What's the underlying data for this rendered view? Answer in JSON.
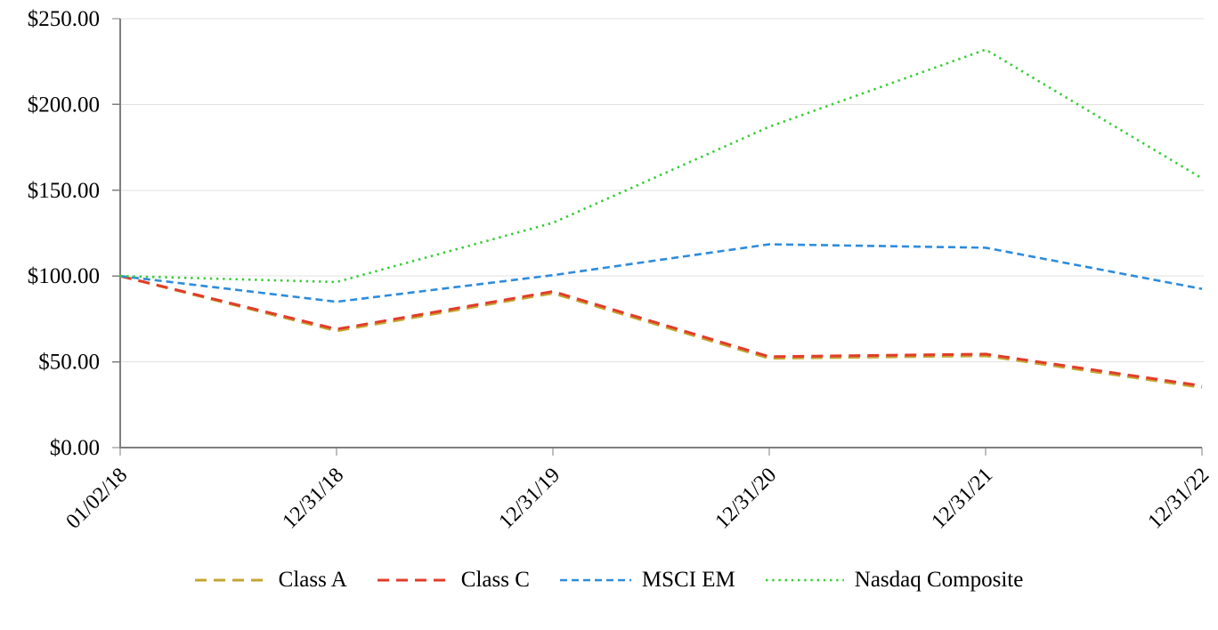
{
  "chart_data": {
    "type": "line",
    "title": "",
    "x": [
      "01/02/18",
      "12/31/18",
      "12/31/19",
      "12/31/20",
      "12/31/21",
      "12/31/22"
    ],
    "series": [
      {
        "name": "Class A",
        "color": "#C4A531",
        "dash": "long-dash",
        "values": [
          100,
          68,
          90,
          52,
          53.5,
          35
        ]
      },
      {
        "name": "Class C",
        "color": "#E23C2A",
        "dash": "long-dash",
        "values": [
          100,
          69,
          91,
          53,
          54.5,
          36
        ]
      },
      {
        "name": "MSCI EM",
        "color": "#2D8CDC",
        "dash": "short-dash",
        "values": [
          100,
          85,
          100.5,
          118.5,
          116.5,
          92.5
        ]
      },
      {
        "name": "Nasdaq Composite",
        "color": "#34CE34",
        "dash": "dot",
        "values": [
          100,
          96.5,
          131,
          187,
          232,
          157
        ]
      }
    ],
    "ylim": [
      0,
      250
    ],
    "y_tick_step": 50,
    "y_tick_labels": [
      "$0.00",
      "$50.00",
      "$100.00",
      "$150.00",
      "$200.00",
      "$250.00"
    ],
    "grid": true,
    "legend_position": "bottom",
    "colors": {
      "axis": "#7F7F7F",
      "grid": "#E2E2E2",
      "text": "#000000",
      "background": "#FFFFFF"
    }
  }
}
